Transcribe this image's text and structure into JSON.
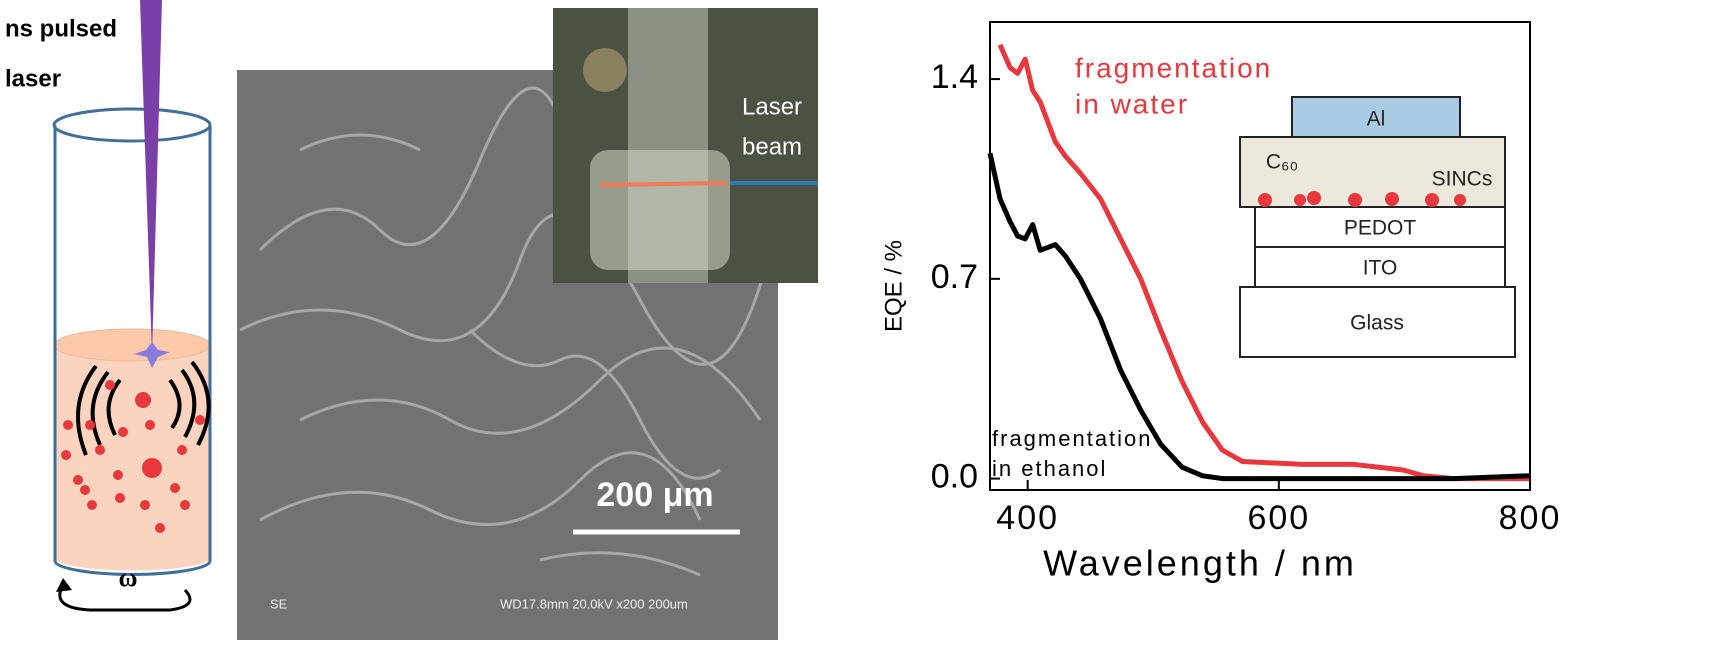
{
  "left_panel": {
    "laser_label": [
      "ns pulsed",
      "laser"
    ],
    "rotation": "ω"
  },
  "sem_panel": {
    "scale_bar": "200 μm",
    "footer_left": "SE",
    "footer_right": "WD17.8mm 20.0kV x200  200um",
    "inset_label": [
      "Laser",
      "beam"
    ]
  },
  "device": {
    "layers": [
      "Al",
      "PEDOT",
      "ITO",
      "Glass"
    ],
    "c60": "C₆₀",
    "sincs": "SINCs"
  },
  "chart_data": {
    "type": "line",
    "x_label": "Wavelength / nm",
    "y_label": "EQE / %",
    "annotations": [
      [
        "fragmentation",
        "in water"
      ],
      [
        "fragmentation",
        "in ethanol"
      ]
    ],
    "x": [
      370,
      378,
      386,
      392,
      398,
      404,
      410,
      422,
      430,
      442,
      458,
      474,
      490,
      506,
      523,
      539,
      555,
      571,
      619,
      659,
      699,
      715,
      739,
      800
    ],
    "series": [
      {
        "color": "#e8383d",
        "values": [
          null,
          1.52,
          1.44,
          1.42,
          1.47,
          1.36,
          1.32,
          1.18,
          1.13,
          1.07,
          0.98,
          0.84,
          0.7,
          0.52,
          0.34,
          0.2,
          0.1,
          0.06,
          0.05,
          0.05,
          0.03,
          0.01,
          0.0,
          0.0
        ]
      },
      {
        "color": "#000000",
        "values": [
          1.14,
          0.98,
          0.9,
          0.85,
          0.84,
          0.89,
          0.8,
          0.82,
          0.78,
          0.7,
          0.56,
          0.38,
          0.24,
          0.12,
          0.04,
          0.01,
          0.0,
          0.0,
          0.0,
          0.0,
          0.0,
          0.0,
          0.0,
          0.01
        ]
      }
    ],
    "xlim": [
      370,
      800
    ],
    "ylim": [
      -0.04,
      1.6
    ],
    "xticks": [
      400,
      600,
      800
    ],
    "yticks": [
      {
        "value": 0,
        "label": "0.0"
      },
      0.7,
      1.4
    ]
  }
}
